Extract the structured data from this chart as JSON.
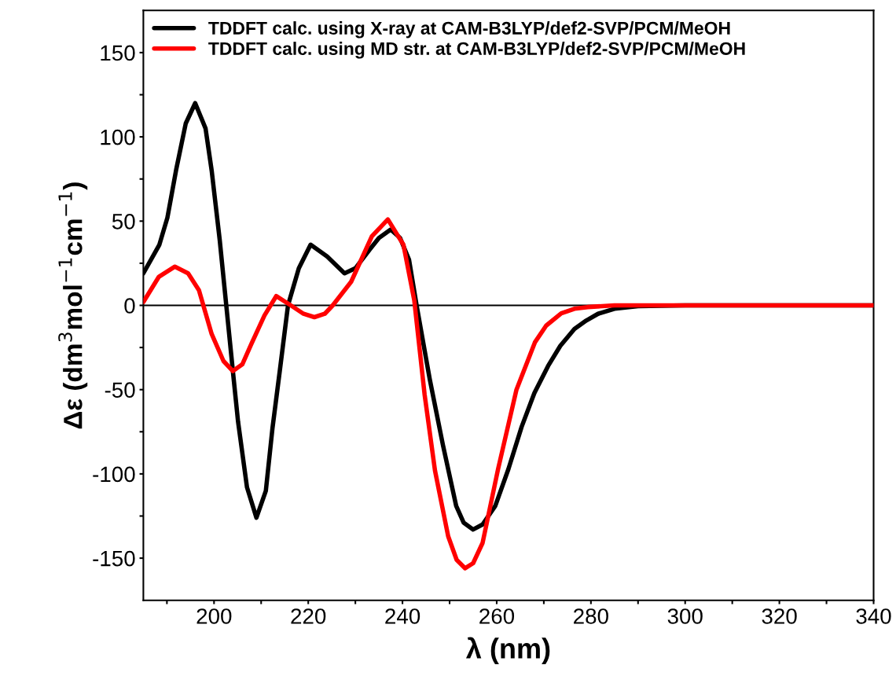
{
  "chart_data": {
    "type": "line",
    "xlabel": "λ (nm)",
    "ylabel": "Δε (dm$^{3}$mol$^{−1}$cm$^{−1}$)",
    "xlim": [
      185,
      340
    ],
    "xticks": [
      {
        "value": 190,
        "label": null
      },
      200,
      {
        "value": 210,
        "label": null
      },
      220,
      {
        "value": 230,
        "label": null
      },
      240,
      {
        "value": 250,
        "label": null
      },
      260,
      {
        "value": 270,
        "label": null
      },
      280,
      {
        "value": 290,
        "label": null
      },
      300,
      {
        "value": 310,
        "label": null
      },
      320,
      {
        "value": 330,
        "label": null
      },
      340
    ],
    "ylim": [
      -175,
      175
    ],
    "yticks": [
      -150,
      {
        "value": -125,
        "label": null
      },
      -100,
      {
        "value": -75,
        "label": null
      },
      -50,
      {
        "value": -25,
        "label": null
      },
      0,
      {
        "value": 25,
        "label": null
      },
      50,
      {
        "value": 75,
        "label": null
      },
      100,
      {
        "value": 125,
        "label": null
      },
      150
    ],
    "grid": false,
    "legend": "top left",
    "marker": "none",
    "line_style": "solid",
    "ref_lines": [
      {
        "axis": "y",
        "value": 0,
        "color": "#000000"
      }
    ],
    "series": [
      {
        "name": "TDDFT calc. using X-ray at CAM-B3LYP/def2-SVP/PCM/MeOH",
        "color": "#000000",
        "x": [
          185,
          188.4,
          190.1,
          192,
          194,
          196,
          198.2,
          199.5,
          201.2,
          202.6,
          204,
          205.1,
          207,
          209,
          211,
          212.4,
          214,
          215.7,
          218,
          220.5,
          224,
          227.7,
          230,
          233,
          235,
          237.5,
          239.5,
          241.4,
          243,
          245.8,
          248.6,
          251.4,
          253,
          255,
          257,
          259.7,
          262.5,
          265.3,
          268,
          270.9,
          273.5,
          276.5,
          279,
          281.5,
          285,
          290,
          300,
          320,
          340
        ],
        "values": [
          19,
          36,
          52,
          81,
          108,
          120,
          105,
          80,
          39,
          0,
          -39,
          -69,
          -108,
          -126,
          -110,
          -73,
          -38,
          0,
          22,
          36,
          29,
          19,
          22,
          33,
          40,
          45,
          40,
          27,
          0,
          -44,
          -83,
          -119,
          -129,
          -133,
          -130,
          -119,
          -97,
          -72,
          -52,
          -36,
          -24,
          -14,
          -9,
          -5,
          -2,
          -0.5,
          0,
          0,
          0
        ]
      },
      {
        "name": "TDDFT calc. using MD str. at CAM-B3LYP/def2-SVP/PCM/MeOH",
        "color": "#ff0000",
        "x": [
          185,
          188.3,
          191.7,
          194.5,
          196.8,
          199.5,
          202,
          204,
          206,
          207.9,
          210.7,
          213.2,
          216.3,
          219,
          221.3,
          223.5,
          225.2,
          229.1,
          233.5,
          236.9,
          240.2,
          242.5,
          244.7,
          246.9,
          249.7,
          251.5,
          253.3,
          255,
          257,
          260.3,
          264.2,
          268.1,
          270.5,
          273.7,
          276.5,
          279.3,
          285,
          290,
          300,
          320,
          340
        ],
        "values": [
          2,
          17,
          23,
          19,
          9,
          -17,
          -33,
          -39,
          -35,
          -23,
          -6,
          5.5,
          0,
          -5,
          -7,
          -5,
          0,
          14,
          41,
          51,
          36,
          3,
          -53,
          -98,
          -137,
          -151,
          -156,
          -153,
          -141,
          -97,
          -50,
          -22,
          -12,
          -4.7,
          -2,
          -1,
          0,
          0,
          0,
          0,
          0
        ]
      }
    ]
  }
}
